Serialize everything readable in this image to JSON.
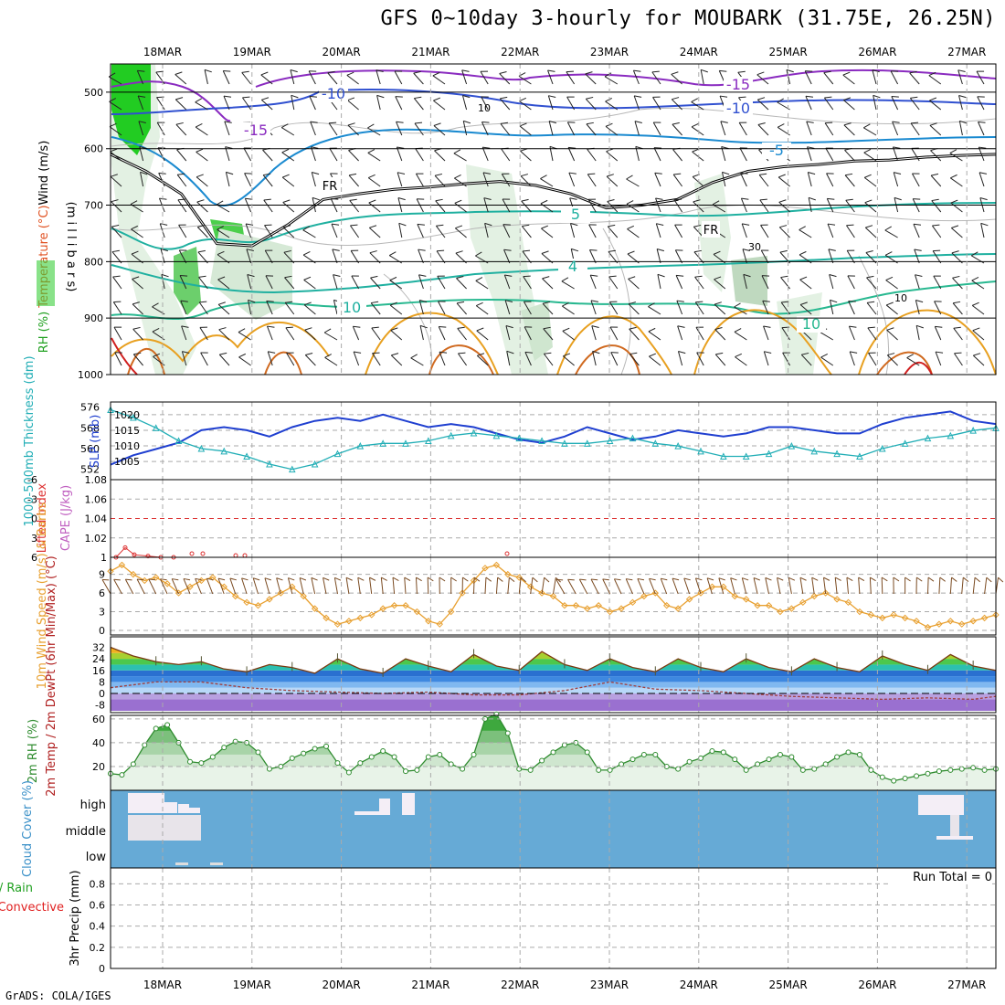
{
  "title": "GFS 0~10day 3-hourly for MOUBARK (31.75E, 26.25N)",
  "credit": "GrADS: COLA/IGES",
  "run_total": "Run Total = 0",
  "dates": [
    "18MAR",
    "19MAR",
    "20MAR",
    "21MAR",
    "22MAR",
    "23MAR",
    "24MAR",
    "25MAR",
    "26MAR",
    "27MAR"
  ],
  "colors": {
    "grid": "#aaaaaa",
    "slp": "#1f3fd0",
    "thickness": "#22aeb6",
    "lifted": "#dd3333",
    "wind": "#e8a030",
    "rh": "#2e8b2e",
    "cloud": "#66aad6",
    "cloudpatch": "#eee8f0"
  },
  "chart_data": [
    {
      "type": "contour",
      "panel": "upper-air",
      "ylabel_parts": [
        "RH (%)",
        "Temperature (°C)",
        "Wind (m/s)"
      ],
      "ylabel2": "(m i l l i b a r s)",
      "yticks": [
        500,
        600,
        700,
        800,
        900,
        1000
      ],
      "ylim": [
        1000,
        450
      ],
      "temperature_labels": [
        "-10",
        "-15",
        "-15",
        "-10",
        "-5",
        "5",
        "4",
        "10",
        "10",
        "FR",
        "FR"
      ],
      "rh_labels": [
        "10",
        "30",
        "10"
      ],
      "freezing_level_mb": [
        610,
        640,
        680,
        768,
        772,
        735,
        690,
        680,
        672,
        668,
        662,
        658,
        665,
        680,
        705,
        700,
        690,
        660,
        640,
        632,
        628,
        622,
        620,
        615,
        612,
        610
      ]
    },
    {
      "type": "line",
      "panel": "slp-thickness",
      "ylabel_left": "1000-500mb Thickness (dm)",
      "ylabel_right": "SLP (mb)",
      "yticks_left": [
        552,
        560,
        568,
        576
      ],
      "yticks_right": [
        1005,
        1010,
        1015,
        1020
      ],
      "ylim_left": [
        548,
        578
      ],
      "series": [
        {
          "name": "SLP (mb)",
          "x": [
            0,
            2,
            4,
            6,
            8,
            10,
            12,
            14,
            16,
            18,
            20,
            22,
            24,
            26,
            28,
            30,
            32,
            34,
            36,
            38,
            40,
            42,
            44,
            46,
            48,
            50,
            52,
            54,
            56,
            58,
            60,
            62,
            64,
            66,
            68,
            70,
            72,
            74,
            76,
            78
          ],
          "values": [
            1004,
            1007,
            1009,
            1011,
            1015,
            1016,
            1015,
            1013,
            1016,
            1018,
            1019,
            1018,
            1020,
            1018,
            1016,
            1017,
            1016,
            1014,
            1012,
            1011,
            1013,
            1016,
            1014,
            1012,
            1013,
            1015,
            1014,
            1013,
            1014,
            1016,
            1016,
            1015,
            1014,
            1014,
            1017,
            1019,
            1020,
            1021,
            1018,
            1017
          ]
        },
        {
          "name": "1000-500mb Thickness (dm)",
          "x": [
            0,
            2,
            4,
            6,
            8,
            10,
            12,
            14,
            16,
            18,
            20,
            22,
            24,
            26,
            28,
            30,
            32,
            34,
            36,
            38,
            40,
            42,
            44,
            46,
            48,
            50,
            52,
            54,
            56,
            58,
            60,
            62,
            64,
            66,
            68,
            70,
            72,
            74,
            76,
            78
          ],
          "values": [
            575,
            572,
            568,
            563,
            560,
            559,
            557,
            554,
            552,
            554,
            558,
            561,
            562,
            562,
            563,
            565,
            566,
            565,
            564,
            563,
            562,
            562,
            563,
            564,
            562,
            561,
            559,
            557,
            557,
            558,
            561,
            559,
            558,
            557,
            560,
            562,
            564,
            565,
            567,
            568
          ]
        }
      ]
    },
    {
      "type": "line",
      "panel": "lifted-cape",
      "ylabel_left": "Lifted Index",
      "ylabel_right": "CAPE (J/kg)",
      "yticks_left": [
        -6,
        -3,
        0,
        3,
        6
      ],
      "yticks_right": [
        1,
        1.02,
        1.04,
        1.06,
        1.08
      ],
      "series": [
        {
          "name": "Lifted Index",
          "x": [
            0,
            1,
            2,
            3,
            4,
            5
          ],
          "values": [
            6,
            4.5,
            5.6,
            5.8,
            6,
            6
          ]
        }
      ]
    },
    {
      "type": "line",
      "panel": "10m-wind",
      "ylabel": "10m Wind Speed (m/s) & Barbs",
      "yticks": [
        0,
        3,
        6,
        9
      ],
      "ylim": [
        0,
        11
      ],
      "series": [
        {
          "name": "Speed",
          "x": [
            0,
            1,
            2,
            3,
            4,
            5,
            6,
            7,
            8,
            9,
            10,
            11,
            12,
            13,
            14,
            15,
            16,
            17,
            18,
            19,
            20,
            21,
            22,
            23,
            24,
            25,
            26,
            27,
            28,
            29,
            30,
            31,
            32,
            33,
            34,
            35,
            36,
            37,
            38,
            39,
            40,
            41,
            42,
            43,
            44,
            45,
            46,
            47,
            48,
            49,
            50,
            51,
            52,
            53,
            54,
            55,
            56,
            57,
            58,
            59,
            60,
            61,
            62,
            63,
            64,
            65,
            66,
            67,
            68,
            69,
            70,
            71,
            72,
            73,
            74,
            75,
            76,
            77,
            78
          ],
          "values": [
            9.5,
            10.5,
            9,
            8,
            8.5,
            7.5,
            6,
            7,
            8,
            8.5,
            7,
            5.5,
            4.5,
            4,
            5,
            6,
            7,
            5.5,
            3.5,
            2,
            1,
            1.5,
            2,
            2.5,
            3.5,
            4,
            4,
            3,
            1.5,
            1,
            3,
            6,
            8,
            10,
            10.5,
            9,
            8.5,
            7,
            6,
            5.5,
            4,
            4,
            3.5,
            4,
            3,
            3.5,
            4.5,
            5.5,
            6,
            4,
            3.5,
            5,
            6,
            7,
            7,
            5.5,
            5,
            4,
            4,
            3,
            3.5,
            4.5,
            5.5,
            6,
            5,
            4.5,
            3,
            2.5,
            2,
            2.5,
            2,
            1.5,
            0.5,
            1,
            1.5,
            1,
            1.5,
            2,
            2.5
          ]
        }
      ]
    },
    {
      "type": "area",
      "panel": "2m-temp",
      "ylabel": "2m Temp / 2m DewPt (6hr Min/Max) (°C)",
      "yticks": [
        -8,
        0,
        8,
        16,
        24,
        32
      ],
      "ylim": [
        -12,
        38
      ],
      "series": [
        {
          "name": "2m Temp",
          "x": [
            0,
            2,
            4,
            6,
            8,
            10,
            12,
            14,
            16,
            18,
            20,
            22,
            24,
            26,
            28,
            30,
            32,
            34,
            36,
            38,
            40,
            42,
            44,
            46,
            48,
            50,
            52,
            54,
            56,
            58,
            60,
            62,
            64,
            66,
            68,
            70,
            72,
            74,
            76,
            78
          ],
          "values": [
            32,
            26,
            22,
            20,
            22,
            17,
            15,
            20,
            18,
            14,
            24,
            17,
            14,
            24,
            19,
            15,
            27,
            19,
            16,
            29,
            20,
            16,
            24,
            18,
            15,
            24,
            18,
            15,
            24,
            18,
            15,
            24,
            18,
            15,
            26,
            20,
            16,
            27,
            19,
            16
          ]
        },
        {
          "name": "2m DewPt",
          "x": [
            0,
            4,
            8,
            12,
            16,
            20,
            24,
            28,
            32,
            36,
            40,
            44,
            48,
            52,
            56,
            60,
            64,
            68,
            72,
            76,
            78
          ],
          "values": [
            4,
            8,
            8,
            4,
            2,
            1,
            0,
            1,
            -1,
            -1,
            2,
            8,
            3,
            2,
            0,
            -2,
            -3,
            -4,
            -3,
            -4,
            -2
          ]
        }
      ]
    },
    {
      "type": "area",
      "panel": "2m-rh",
      "ylabel": "2m RH (%)",
      "yticks": [
        20,
        40,
        60
      ],
      "ylim": [
        0,
        63
      ],
      "series": [
        {
          "name": "2m RH",
          "x": [
            0,
            1,
            2,
            3,
            4,
            5,
            6,
            7,
            8,
            9,
            10,
            11,
            12,
            13,
            14,
            15,
            16,
            17,
            18,
            19,
            20,
            21,
            22,
            23,
            24,
            25,
            26,
            27,
            28,
            29,
            30,
            31,
            32,
            33,
            34,
            35,
            36,
            37,
            38,
            39,
            40,
            41,
            42,
            43,
            44,
            45,
            46,
            47,
            48,
            49,
            50,
            51,
            52,
            53,
            54,
            55,
            56,
            57,
            58,
            59,
            60,
            61,
            62,
            63,
            64,
            65,
            66,
            67,
            68,
            69,
            70,
            71,
            72,
            73,
            74,
            75,
            76,
            77,
            78
          ],
          "values": [
            14,
            13,
            22,
            38,
            52,
            55,
            40,
            24,
            23,
            28,
            36,
            41,
            40,
            32,
            18,
            20,
            27,
            31,
            35,
            37,
            23,
            15,
            23,
            28,
            33,
            28,
            16,
            17,
            28,
            30,
            22,
            18,
            30,
            60,
            64,
            48,
            18,
            17,
            25,
            32,
            38,
            40,
            32,
            17,
            17,
            22,
            26,
            30,
            30,
            20,
            18,
            24,
            27,
            33,
            32,
            26,
            17,
            22,
            26,
            30,
            28,
            17,
            18,
            22,
            28,
            32,
            30,
            17,
            11,
            8,
            10,
            12,
            14,
            16,
            17,
            18,
            19,
            17,
            18
          ]
        }
      ]
    },
    {
      "type": "bar",
      "panel": "cloud-cover",
      "ylabel": "Cloud Cover (%)",
      "yticks": [
        "high",
        "middle",
        "low"
      ]
    },
    {
      "type": "bar",
      "panel": "precip",
      "ylabel_parts": [
        "Total / Rain",
        "Convective"
      ],
      "ylabel2": "3hr Precip (mm)",
      "yticks": [
        0,
        0.2,
        0.4,
        0.6,
        0.8
      ],
      "ylim": [
        0,
        0.95
      ],
      "values": []
    }
  ]
}
